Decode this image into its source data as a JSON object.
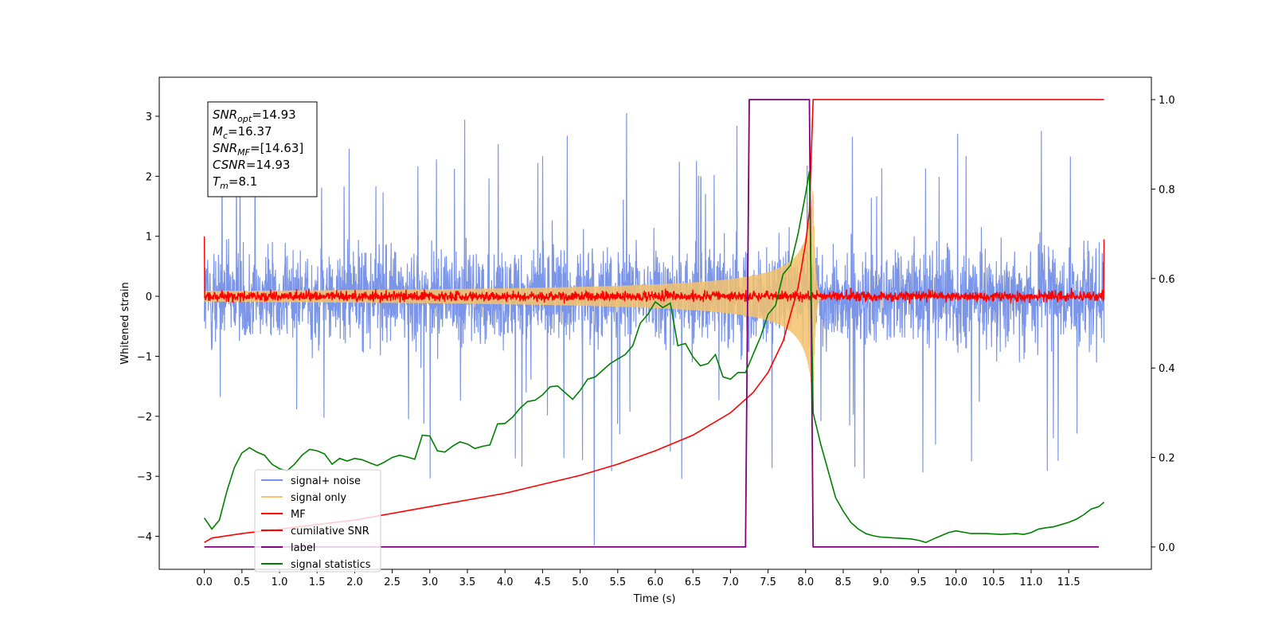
{
  "chart_data": {
    "type": "line",
    "title": "",
    "xlabel": "Time (s)",
    "ylabel": "Whitened strain",
    "xlim": [
      -0.6,
      12.6
    ],
    "ylim": [
      -4.55,
      3.65
    ],
    "y2lim": [
      -0.05,
      1.05
    ],
    "xticks": [
      "0.0",
      "0.5",
      "1.0",
      "1.5",
      "2.0",
      "2.5",
      "3.0",
      "3.5",
      "4.0",
      "4.5",
      "5.0",
      "5.5",
      "6.0",
      "6.5",
      "7.0",
      "7.5",
      "8.0",
      "8.5",
      "9.0",
      "9.5",
      "10.0",
      "10.5",
      "11.0",
      "11.5"
    ],
    "yticks": [
      "3",
      "2",
      "1",
      "0",
      "−1",
      "−2",
      "−3",
      "−4"
    ],
    "y2ticks": [
      "1.0",
      "0.8",
      "0.6",
      "0.4",
      "0.2",
      "0.0"
    ],
    "grid": false,
    "legend_position": "lower-left",
    "annotation": {
      "lines": [
        {
          "var": "SNR",
          "sub": "opt",
          "value": "=14.93"
        },
        {
          "var": "M",
          "sub": "c",
          "value": "=16.37"
        },
        {
          "var": "SNR",
          "sub": "MF",
          "value": "=[14.63]"
        },
        {
          "var": "CSNR",
          "sub": "",
          "value": "=14.93"
        },
        {
          "var": "T",
          "sub": "m",
          "value": "=8.1"
        }
      ]
    },
    "series": [
      {
        "name": "signal+ noise",
        "color": "#7893e8",
        "axis": "left",
        "description_range": [
          -1.5,
          1.5
        ],
        "spikes_max": 3.3,
        "spikes_min": -4.15
      },
      {
        "name": "signal only",
        "color": "#f5c26b",
        "axis": "left",
        "peak_time": 8.1,
        "peak_amplitude": 2.1
      },
      {
        "name": "MF",
        "color": "#ff0000",
        "axis": "left",
        "baseline": 0.0,
        "noise_amplitude": 0.12
      },
      {
        "name": "cumilative SNR",
        "color": "#ff0000",
        "axis": "right",
        "x": [
          0.0,
          0.1,
          0.5,
          1.0,
          2.0,
          3.0,
          4.0,
          5.0,
          5.5,
          6.0,
          6.5,
          7.0,
          7.3,
          7.5,
          7.7,
          7.9,
          8.0,
          8.05,
          8.1,
          11.97
        ],
        "y": [
          0.01,
          0.02,
          0.03,
          0.04,
          0.06,
          0.09,
          0.12,
          0.16,
          0.185,
          0.215,
          0.25,
          0.3,
          0.345,
          0.39,
          0.46,
          0.58,
          0.68,
          0.75,
          1.0,
          1.0
        ]
      },
      {
        "name": "label",
        "color": "#800080",
        "axis": "right",
        "x": [
          0.0,
          7.2,
          7.25,
          8.05,
          8.1,
          11.9
        ],
        "y": [
          0.0,
          0.0,
          1.0,
          1.0,
          0.0,
          0.0
        ]
      },
      {
        "name": "signal statistics",
        "color": "#008000",
        "axis": "right",
        "x": [
          0.0,
          0.1,
          0.2,
          0.3,
          0.4,
          0.5,
          0.6,
          0.7,
          0.8,
          0.9,
          1.0,
          1.1,
          1.2,
          1.3,
          1.4,
          1.5,
          1.6,
          1.7,
          1.8,
          1.9,
          2.0,
          2.1,
          2.2,
          2.3,
          2.4,
          2.5,
          2.6,
          2.7,
          2.8,
          2.9,
          3.0,
          3.1,
          3.2,
          3.3,
          3.4,
          3.5,
          3.6,
          3.7,
          3.8,
          3.9,
          4.0,
          4.1,
          4.2,
          4.3,
          4.4,
          4.5,
          4.6,
          4.7,
          4.8,
          4.9,
          5.0,
          5.1,
          5.2,
          5.3,
          5.4,
          5.5,
          5.6,
          5.7,
          5.8,
          5.9,
          6.0,
          6.1,
          6.2,
          6.3,
          6.4,
          6.5,
          6.6,
          6.7,
          6.8,
          6.9,
          7.0,
          7.1,
          7.2,
          7.3,
          7.4,
          7.5,
          7.6,
          7.7,
          7.8,
          7.9,
          8.0,
          8.05,
          8.1,
          8.2,
          8.3,
          8.4,
          8.5,
          8.6,
          8.7,
          8.8,
          8.9,
          9.0,
          9.2,
          9.4,
          9.5,
          9.6,
          9.7,
          9.8,
          9.9,
          10.0,
          10.2,
          10.4,
          10.6,
          10.8,
          10.9,
          11.0,
          11.1,
          11.2,
          11.3,
          11.4,
          11.5,
          11.6,
          11.7,
          11.8,
          11.9,
          11.97
        ],
        "y": [
          0.065,
          0.04,
          0.06,
          0.125,
          0.178,
          0.21,
          0.222,
          0.212,
          0.205,
          0.185,
          0.175,
          0.17,
          0.185,
          0.205,
          0.218,
          0.215,
          0.208,
          0.185,
          0.198,
          0.192,
          0.198,
          0.195,
          0.188,
          0.182,
          0.19,
          0.2,
          0.205,
          0.201,
          0.196,
          0.25,
          0.248,
          0.215,
          0.212,
          0.225,
          0.235,
          0.23,
          0.22,
          0.225,
          0.228,
          0.275,
          0.276,
          0.29,
          0.31,
          0.325,
          0.328,
          0.34,
          0.358,
          0.36,
          0.345,
          0.33,
          0.35,
          0.375,
          0.38,
          0.395,
          0.41,
          0.42,
          0.43,
          0.45,
          0.5,
          0.52,
          0.548,
          0.535,
          0.545,
          0.45,
          0.455,
          0.425,
          0.405,
          0.41,
          0.43,
          0.38,
          0.375,
          0.39,
          0.39,
          0.43,
          0.47,
          0.52,
          0.54,
          0.61,
          0.63,
          0.7,
          0.79,
          0.84,
          0.3,
          0.23,
          0.17,
          0.11,
          0.08,
          0.055,
          0.04,
          0.03,
          0.025,
          0.022,
          0.02,
          0.018,
          0.015,
          0.01,
          0.018,
          0.025,
          0.032,
          0.036,
          0.03,
          0.03,
          0.028,
          0.03,
          0.028,
          0.032,
          0.04,
          0.043,
          0.045,
          0.05,
          0.055,
          0.062,
          0.072,
          0.085,
          0.09,
          0.1
        ]
      }
    ]
  }
}
